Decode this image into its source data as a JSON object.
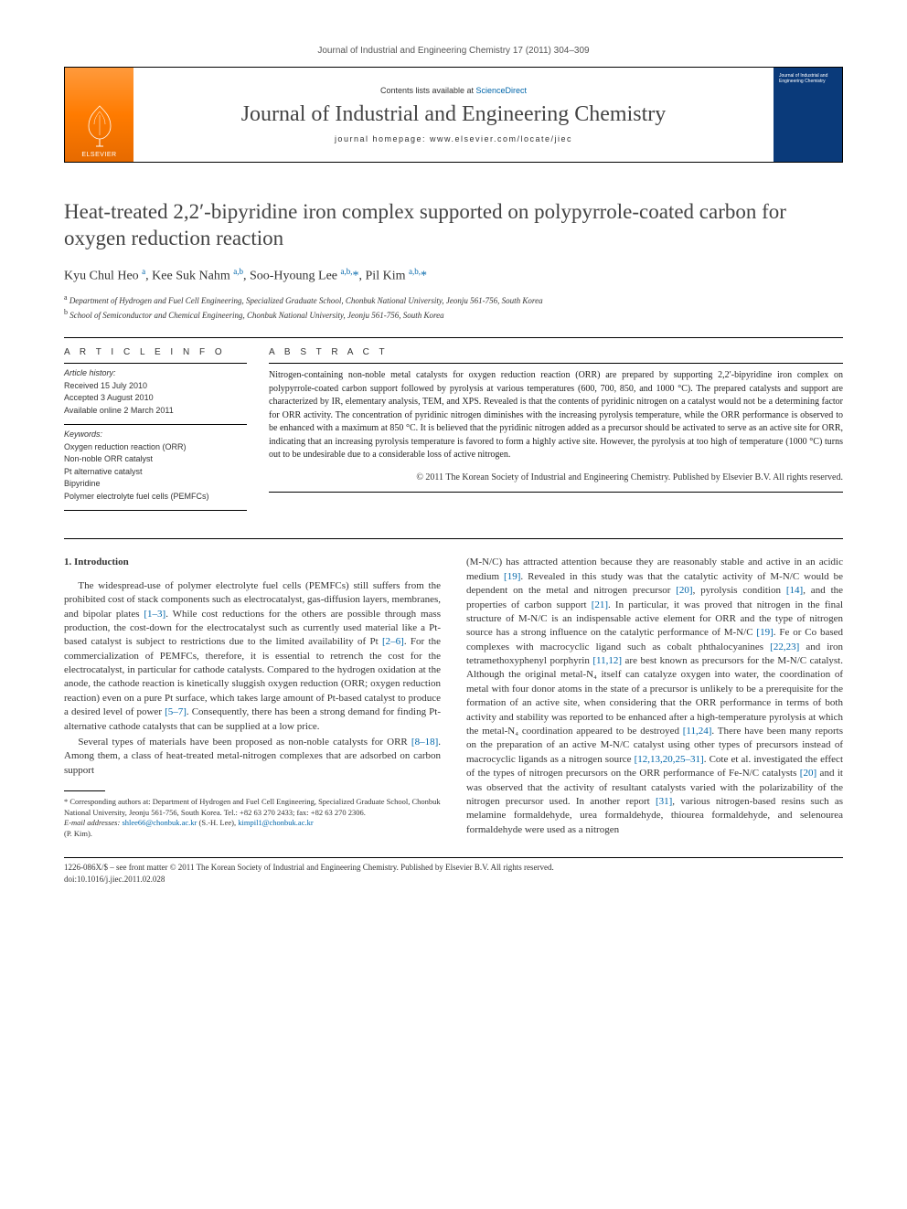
{
  "citation": "Journal of Industrial and Engineering Chemistry 17 (2011) 304–309",
  "masthead": {
    "publisher_label": "ELSEVIER",
    "contents_prefix": "Contents lists available at ",
    "contents_link": "ScienceDirect",
    "journal_name": "Journal of Industrial and Engineering Chemistry",
    "homepage_prefix": "journal homepage: ",
    "homepage": "www.elsevier.com/locate/jiec",
    "cover_text": "Journal of Industrial and Engineering Chemistry"
  },
  "title": "Heat-treated 2,2′-bipyridine iron complex supported on polypyrrole-coated carbon for oxygen reduction reaction",
  "authors_html": "Kyu Chul Heo <sup>a</sup>, Kee Suk Nahm <sup>a,b</sup>, Soo-Hyoung Lee <sup>a,b,</sup><span class='star'>*</span>, Pil Kim <sup>a,b,</sup><span class='star'>*</span>",
  "affiliations": {
    "a": "Department of Hydrogen and Fuel Cell Engineering, Specialized Graduate School, Chonbuk National University, Jeonju 561-756, South Korea",
    "b": "School of Semiconductor and Chemical Engineering, Chonbuk National University, Jeonju 561-756, South Korea"
  },
  "article_info": {
    "heading": "A R T I C L E   I N F O",
    "history_label": "Article history:",
    "received": "Received 15 July 2010",
    "accepted": "Accepted 3 August 2010",
    "online": "Available online 2 March 2011",
    "keywords_label": "Keywords:",
    "keywords": [
      "Oxygen reduction reaction (ORR)",
      "Non-noble ORR catalyst",
      "Pt alternative catalyst",
      "Bipyridine",
      "Polymer electrolyte fuel cells (PEMFCs)"
    ]
  },
  "abstract": {
    "heading": "A B S T R A C T",
    "text": "Nitrogen-containing non-noble metal catalysts for oxygen reduction reaction (ORR) are prepared by supporting 2,2′-bipyridine iron complex on polypyrrole-coated carbon support followed by pyrolysis at various temperatures (600, 700, 850, and 1000 °C). The prepared catalysts and support are characterized by IR, elementary analysis, TEM, and XPS. Revealed is that the contents of pyridinic nitrogen on a catalyst would not be a determining factor for ORR activity. The concentration of pyridinic nitrogen diminishes with the increasing pyrolysis temperature, while the ORR performance is observed to be enhanced with a maximum at 850 °C. It is believed that the pyridinic nitrogen added as a precursor should be activated to serve as an active site for ORR, indicating that an increasing pyrolysis temperature is favored to form a highly active site. However, the pyrolysis at too high of temperature (1000 °C) turns out to be undesirable due to a considerable loss of active nitrogen.",
    "copyright": "© 2011 The Korean Society of Industrial and Engineering Chemistry. Published by Elsevier B.V. All rights reserved."
  },
  "body": {
    "section_heading": "1. Introduction",
    "left_p1": "The widespread-use of polymer electrolyte fuel cells (PEMFCs) still suffers from the prohibited cost of stack components such as electrocatalyst, gas-diffusion layers, membranes, and bipolar plates [1–3]. While cost reductions for the others are possible through mass production, the cost-down for the electrocatalyst such as currently used material like a Pt-based catalyst is subject to restrictions due to the limited availability of Pt [2–6]. For the commercialization of PEMFCs, therefore, it is essential to retrench the cost for the electrocatalyst, in particular for cathode catalysts. Compared to the hydrogen oxidation at the anode, the cathode reaction is kinetically sluggish oxygen reduction (ORR; oxygen reduction reaction) even on a pure Pt surface, which takes large amount of Pt-based catalyst to produce a desired level of power [5–7]. Consequently, there has been a strong demand for finding Pt-alternative cathode catalysts that can be supplied at a low price.",
    "left_p2": "Several types of materials have been proposed as non-noble catalysts for ORR [8–18]. Among them, a class of heat-treated metal-nitrogen complexes that are adsorbed on carbon support",
    "right_p1": "(M-N/C) has attracted attention because they are reasonably stable and active in an acidic medium [19]. Revealed in this study was that the catalytic activity of M-N/C would be dependent on the metal and nitrogen precursor [20], pyrolysis condition [14], and the properties of carbon support [21]. In particular, it was proved that nitrogen in the final structure of M-N/C is an indispensable active element for ORR and the type of nitrogen source has a strong influence on the catalytic performance of M-N/C [19]. Fe or Co based complexes with macrocyclic ligand such as cobalt phthalocyanines [22,23] and iron tetramethoxyphenyl porphyrin [11,12] are best known as precursors for the M-N/C catalyst. Although the original metal-N₄ itself can catalyze oxygen into water, the coordination of metal with four donor atoms in the state of a precursor is unlikely to be a prerequisite for the formation of an active site, when considering that the ORR performance in terms of both activity and stability was reported to be enhanced after a high-temperature pyrolysis at which the metal-N₄ coordination appeared to be destroyed [11,24]. There have been many reports on the preparation of an active M-N/C catalyst using other types of precursors instead of macrocyclic ligands as a nitrogen source [12,13,20,25–31]. Cote et al. investigated the effect of the types of nitrogen precursors on the ORR performance of Fe-N/C catalysts [20] and it was observed that the activity of resultant catalysts varied with the polarizability of the nitrogen precursor used. In another report [31], various nitrogen-based resins such as melamine formaldehyde, urea formaldehyde, thiourea formaldehyde, and selenourea formaldehyde were used as a nitrogen"
  },
  "footnote": {
    "corr": "* Corresponding authors at: Department of Hydrogen and Fuel Cell Engineering, Specialized Graduate School, Chonbuk National University, Jeonju 561-756, South Korea. Tel.: +82 63 270 2433; fax: +82 63 270 2306.",
    "email_label": "E-mail addresses: ",
    "email1": "shlee66@chonbuk.ac.kr",
    "email1_who": "(S.-H. Lee), ",
    "email2": "kimpil1@chonbuk.ac.kr",
    "email2_who": "(P. Kim)."
  },
  "bottom": {
    "line1": "1226-086X/$ – see front matter © 2011 The Korean Society of Industrial and Engineering Chemistry. Published by Elsevier B.V. All rights reserved.",
    "doi": "doi:10.1016/j.jiec.2011.02.028"
  },
  "colors": {
    "link": "#0066aa",
    "elsevier_orange": "#ff7b00",
    "cover_blue": "#0a3a7a"
  }
}
